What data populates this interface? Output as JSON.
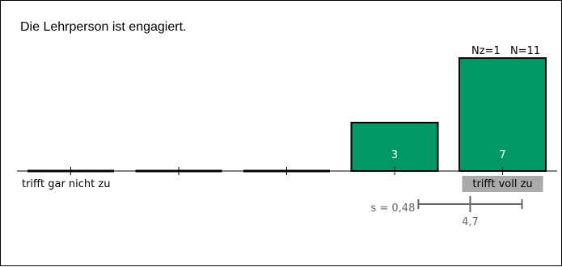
{
  "question": "Die Lehrperson ist engagiert.",
  "stats": {
    "nz": "Nz=1",
    "n": "N=11"
  },
  "colors": {
    "bar": "#009966",
    "bar_border": "#000000",
    "axis": "#000000",
    "stat": "#666666",
    "highlight": "#aaaaaa"
  },
  "chart_data": {
    "type": "bar",
    "categories": [
      "1",
      "2",
      "3",
      "4",
      "5"
    ],
    "values": [
      0,
      0,
      0,
      3,
      7
    ],
    "value_labels": [
      "",
      "",
      "",
      "3",
      "7"
    ],
    "ymax": 7,
    "left_label": "trifft gar nicht zu",
    "right_label": "trifft voll zu",
    "highlight_category": "5",
    "mean": 4.7,
    "mean_label": "4,7",
    "sd": 0.48,
    "sd_label": "s = 0,48"
  }
}
